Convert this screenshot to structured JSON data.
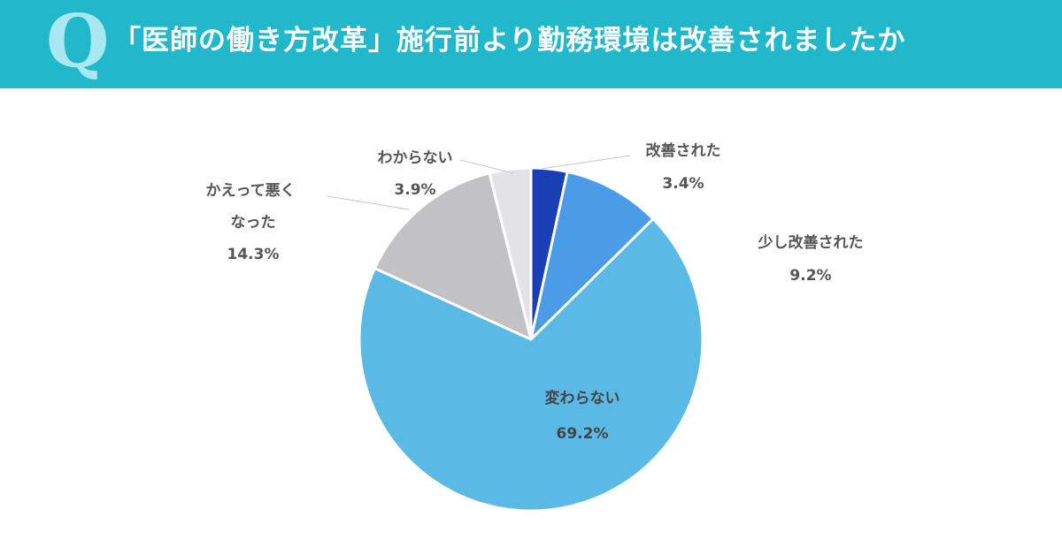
{
  "header": {
    "q_mark": "Q",
    "title": "「医師の働き方改革」施行前より勤務環境は改善されましたか",
    "background": "#22b8cc"
  },
  "chart_data": {
    "type": "pie",
    "title": "「医師の働き方改革」施行前より勤務環境は改善されましたか",
    "slices": [
      {
        "label": "改善された",
        "value": 3.4,
        "display": "3.4%",
        "color": "#1a3eb3"
      },
      {
        "label": "少し改善された",
        "value": 9.2,
        "display": "9.2%",
        "color": "#4a9ce6"
      },
      {
        "label": "変わらない",
        "value": 69.2,
        "display": "69.2%",
        "color": "#5bb9e6"
      },
      {
        "label": "かえって悪くなった",
        "value": 14.3,
        "display": "14.3%",
        "color": "#c2c1c4"
      },
      {
        "label": "わからない",
        "value": 3.9,
        "display": "3.9%",
        "color": "#e3e3e6"
      }
    ],
    "start": "12 o'clock",
    "direction": "clockwise"
  }
}
